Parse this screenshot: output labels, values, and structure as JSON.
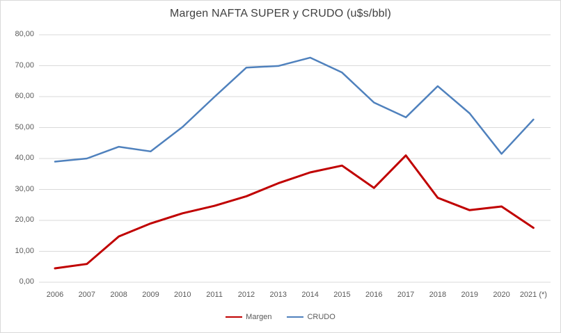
{
  "chart_data": {
    "type": "line",
    "title": "Margen NAFTA SUPER y CRUDO (u$s/bbl)",
    "categories": [
      "2006",
      "2007",
      "2008",
      "2009",
      "2010",
      "2011",
      "2012",
      "2013",
      "2014",
      "2015",
      "2016",
      "2017",
      "2018",
      "2019",
      "2020",
      "2021 (*)"
    ],
    "series": [
      {
        "name": "Margen",
        "color": "#C00000",
        "values": [
          4.5,
          5.9,
          14.8,
          19.0,
          22.3,
          24.7,
          27.8,
          32.0,
          35.5,
          37.7,
          30.5,
          41.0,
          27.3,
          23.3,
          24.5,
          17.6
        ]
      },
      {
        "name": "CRUDO",
        "color": "#4F81BD",
        "values": [
          39.0,
          40.0,
          43.8,
          42.3,
          50.2,
          59.9,
          69.4,
          69.9,
          72.6,
          67.8,
          58.1,
          53.3,
          63.4,
          54.6,
          41.5,
          52.6
        ]
      }
    ],
    "ylim": [
      0,
      80
    ],
    "ytick_step": 10,
    "ytick_labels": [
      "0,00",
      "10,00",
      "20,00",
      "30,00",
      "40,00",
      "50,00",
      "60,00",
      "70,00",
      "80,00"
    ],
    "xlabel": "",
    "ylabel": "",
    "grid": true,
    "legend_position": "bottom"
  },
  "colors": {
    "grid": "#d9d9d9",
    "axis_text": "#595959",
    "title_text": "#404040",
    "border": "#d9d9d9",
    "background": "#ffffff"
  }
}
